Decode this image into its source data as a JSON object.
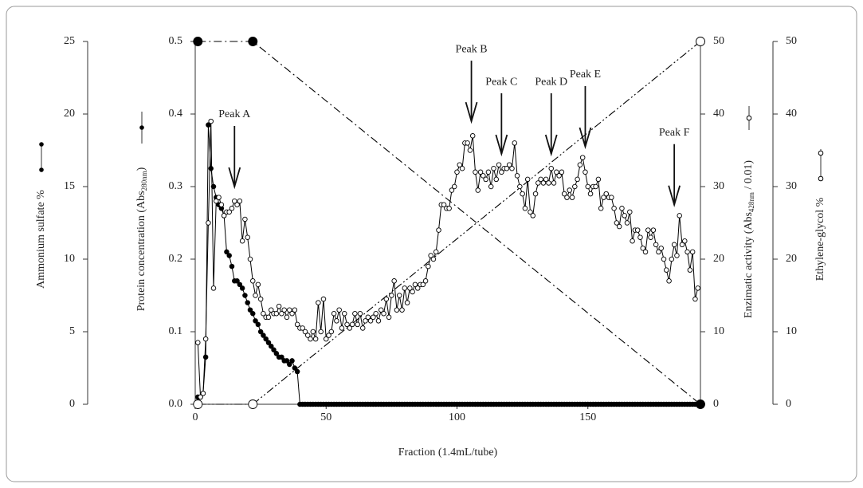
{
  "chart_data": {
    "type": "line",
    "xlabel": "Fraction (1.4mL/tube)",
    "xlim": [
      0,
      193
    ],
    "xticks": [
      0,
      50,
      100,
      150
    ],
    "ylabel": {
      "text": "Protein concentration (Abs",
      "sub": "280nm",
      "end": ")"
    },
    "ylim": [
      0,
      0.5
    ],
    "yticks": [
      {
        "value": 0,
        "label": "0.0"
      },
      0.1,
      0.2,
      0.3,
      0.4,
      0.5
    ],
    "y2label": {
      "text": "Enzimatic activity (Abs",
      "sub": "428nm",
      "end": " / 0.01)"
    },
    "y2lim": [
      0,
      50
    ],
    "y2ticks": [
      0,
      10,
      20,
      30,
      40,
      50
    ],
    "y3label": "Ammonium sulfate %",
    "y3lim": [
      0,
      25
    ],
    "y3ticks": [
      0,
      5,
      10,
      15,
      20,
      25
    ],
    "y4label": "Ethylene-glycol %",
    "y4lim": [
      0,
      50
    ],
    "y4ticks": [
      0,
      10,
      20,
      30,
      40,
      50
    ],
    "x": [
      1,
      2,
      3,
      4,
      5,
      6,
      7,
      8,
      9,
      10,
      11,
      12,
      13,
      14,
      15,
      16,
      17,
      18,
      19,
      20,
      21,
      22,
      23,
      24,
      25,
      26,
      27,
      28,
      29,
      30,
      31,
      32,
      33,
      34,
      35,
      36,
      37,
      38,
      39,
      40,
      41,
      42,
      43,
      44,
      45,
      46,
      47,
      48,
      49,
      50,
      51,
      52,
      53,
      54,
      55,
      56,
      57,
      58,
      59,
      60,
      61,
      62,
      63,
      64,
      65,
      66,
      67,
      68,
      69,
      70,
      71,
      72,
      73,
      74,
      75,
      76,
      77,
      78,
      79,
      80,
      81,
      82,
      83,
      84,
      85,
      86,
      87,
      88,
      89,
      90,
      91,
      92,
      93,
      94,
      95,
      96,
      97,
      98,
      99,
      100,
      101,
      102,
      103,
      104,
      105,
      106,
      107,
      108,
      109,
      110,
      111,
      112,
      113,
      114,
      115,
      116,
      117,
      118,
      119,
      120,
      121,
      122,
      123,
      124,
      125,
      126,
      127,
      128,
      129,
      130,
      131,
      132,
      133,
      134,
      135,
      136,
      137,
      138,
      139,
      140,
      141,
      142,
      143,
      144,
      145,
      146,
      147,
      148,
      149,
      150,
      151,
      152,
      153,
      154,
      155,
      156,
      157,
      158,
      159,
      160,
      161,
      162,
      163,
      164,
      165,
      166,
      167,
      168,
      169,
      170,
      171,
      172,
      173,
      174,
      175,
      176,
      177,
      178,
      179,
      180,
      181,
      182,
      183,
      184,
      185,
      186,
      187,
      188,
      189,
      190,
      191,
      192
    ],
    "series": [
      {
        "axis": "y3",
        "color": "#000000",
        "line": "dashdot",
        "marker": "filled-large",
        "x": [
          1,
          22,
          193
        ],
        "values": [
          25,
          25,
          0
        ]
      },
      {
        "axis": "y4",
        "color": "#000000",
        "line": "dashdotdot",
        "marker": "open-large",
        "x": [
          1,
          22,
          193
        ],
        "values": [
          0,
          0,
          50
        ]
      },
      {
        "axis": "y",
        "color": "#000000",
        "line": "solid",
        "marker": "filled",
        "values": [
          0.01,
          0.01,
          0.015,
          0.065,
          0.385,
          0.325,
          0.3,
          0.285,
          0.275,
          0.27,
          0.26,
          0.21,
          0.205,
          0.19,
          0.17,
          0.17,
          0.165,
          0.16,
          0.15,
          0.14,
          0.13,
          0.125,
          0.115,
          0.11,
          0.1,
          0.095,
          0.09,
          0.085,
          0.08,
          0.075,
          0.07,
          0.065,
          0.065,
          0.06,
          0.06,
          0.055,
          0.06,
          0.05,
          0.045,
          0,
          0,
          0,
          0,
          0,
          0,
          0,
          0,
          0,
          0,
          0,
          0,
          0,
          0,
          0,
          0,
          0,
          0,
          0,
          0,
          0,
          0,
          0,
          0,
          0,
          0,
          0,
          0,
          0,
          0,
          0,
          0,
          0,
          0,
          0,
          0,
          0,
          0,
          0,
          0,
          0,
          0,
          0,
          0,
          0,
          0,
          0,
          0,
          0,
          0,
          0,
          0,
          0,
          0,
          0,
          0,
          0,
          0,
          0,
          0,
          0,
          0,
          0,
          0,
          0,
          0,
          0,
          0,
          0,
          0,
          0,
          0,
          0,
          0,
          0,
          0,
          0,
          0,
          0,
          0,
          0,
          0,
          0,
          0,
          0,
          0,
          0,
          0,
          0,
          0,
          0,
          0,
          0,
          0,
          0,
          0,
          0,
          0,
          0,
          0,
          0,
          0,
          0,
          0,
          0,
          0,
          0,
          0,
          0,
          0,
          0,
          0,
          0,
          0,
          0,
          0,
          0,
          0,
          0,
          0,
          0,
          0,
          0,
          0,
          0,
          0,
          0,
          0,
          0,
          0,
          0,
          0,
          0,
          0,
          0,
          0,
          0,
          0,
          0,
          0,
          0,
          0,
          0,
          0,
          0,
          0,
          0,
          0,
          0,
          0,
          0,
          0,
          0
        ]
      },
      {
        "axis": "y2",
        "color": "#000000",
        "line": "solid",
        "marker": "open",
        "values": [
          8.5,
          1,
          1.5,
          9,
          25,
          39,
          16,
          28,
          28.5,
          27.5,
          26,
          26.5,
          26.5,
          27,
          28,
          27.5,
          28,
          22.5,
          25.5,
          23,
          20,
          17,
          15,
          16.5,
          14.5,
          12.5,
          12,
          12,
          13,
          12.5,
          12.5,
          13.5,
          12.5,
          13,
          12,
          13,
          12.5,
          13,
          11,
          10.5,
          10.5,
          10,
          9.5,
          9,
          10,
          9,
          14,
          10,
          14.5,
          9,
          9.5,
          10,
          12.5,
          11.5,
          13,
          10.5,
          12.5,
          11,
          10.5,
          11,
          12.5,
          11,
          12.5,
          10.5,
          11.5,
          12,
          11.5,
          12,
          12.5,
          11.5,
          13,
          12.5,
          14.5,
          12,
          15,
          17,
          13,
          15,
          13,
          16,
          14,
          16,
          15.5,
          16.5,
          16,
          16.5,
          16.5,
          17,
          19,
          20.5,
          20,
          21,
          24,
          27.5,
          27.5,
          27,
          27,
          29.5,
          30,
          32,
          33,
          32.5,
          36,
          36,
          35,
          37,
          32,
          29.5,
          32,
          31.5,
          31,
          32,
          30,
          32.5,
          31,
          33,
          32,
          32.5,
          32.5,
          33,
          32.5,
          36,
          31.5,
          30,
          29,
          27,
          31,
          26.5,
          26,
          29,
          30.5,
          31,
          30.5,
          31,
          30.5,
          32.5,
          30.5,
          32,
          31.5,
          32,
          29,
          28.5,
          29.5,
          28.5,
          30,
          31,
          33,
          34,
          32,
          30,
          29,
          30,
          30,
          31,
          27,
          28.5,
          29,
          28.5,
          28.5,
          27,
          25,
          24.5,
          27,
          26,
          25,
          26.5,
          22.5,
          24,
          24,
          23,
          21.5,
          21,
          24,
          23,
          24,
          22,
          21,
          21.5,
          20,
          18.5,
          17,
          20,
          22,
          20.5,
          26,
          22,
          22.5,
          21,
          18.5,
          21,
          14.5,
          16
        ]
      }
    ],
    "annotations": [
      {
        "text": "Peak A",
        "x": 15,
        "y": 30
      },
      {
        "text": "Peak B",
        "x": 105.5,
        "y": 39
      },
      {
        "text": "Peak C",
        "x": 117,
        "y": 34.5
      },
      {
        "text": "Peak D",
        "x": 136,
        "y": 34.5
      },
      {
        "text": "Peak E",
        "x": 149,
        "y": 35.5
      },
      {
        "text": "Peak F",
        "x": 183,
        "y": 27.5
      }
    ]
  }
}
